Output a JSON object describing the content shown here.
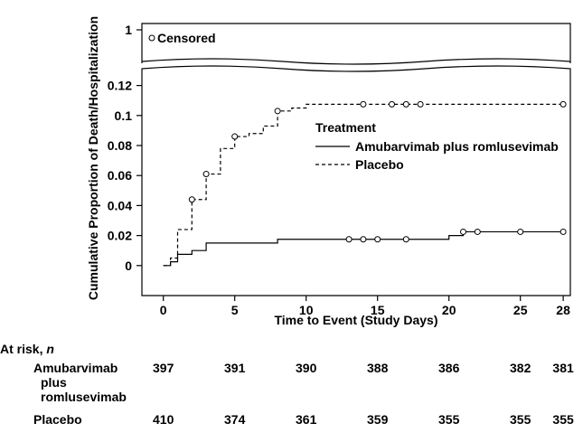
{
  "chart_data": {
    "type": "line",
    "step": true,
    "title": "",
    "xlabel": "Time to Event (Study Days)",
    "ylabel": "Cumulative Proportion of Death/Hospitalization",
    "xlim": [
      -1.5,
      28.5
    ],
    "ylim": [
      -0.02,
      0.13
    ],
    "xticks": [
      0,
      5,
      10,
      15,
      20,
      25,
      28
    ],
    "yticks": [
      0,
      0.02,
      0.04,
      0.06,
      0.08,
      0.1,
      0.12
    ],
    "ytick_labels": [
      "0",
      "0.02",
      "0.04",
      "0.06",
      "0.08",
      "0.1",
      "0.12"
    ],
    "top_panel": {
      "y_tick": "1",
      "censor_label": "Censored"
    },
    "legend": {
      "title": "Treatment",
      "position": "right, upper-middle"
    },
    "series": [
      {
        "name": "Amubarvimab plus romlusevimab",
        "line_style": "solid",
        "color": "#000000",
        "steps": [
          [
            0,
            0
          ],
          [
            0.5,
            0.0025
          ],
          [
            1,
            0.0075
          ],
          [
            2,
            0.01
          ],
          [
            3,
            0.015
          ],
          [
            8,
            0.0175
          ],
          [
            20,
            0.02
          ],
          [
            21,
            0.0225
          ],
          [
            28,
            0.0225
          ]
        ],
        "censored": [
          [
            13,
            0.0175
          ],
          [
            14,
            0.0175
          ],
          [
            15,
            0.0175
          ],
          [
            17,
            0.0175
          ],
          [
            21,
            0.0225
          ],
          [
            22,
            0.0225
          ],
          [
            25,
            0.0225
          ],
          [
            28,
            0.0225
          ]
        ]
      },
      {
        "name": "Placebo",
        "line_style": "dashed",
        "color": "#000000",
        "steps": [
          [
            0,
            0
          ],
          [
            0.5,
            0.005
          ],
          [
            1,
            0.024
          ],
          [
            2,
            0.044
          ],
          [
            3,
            0.061
          ],
          [
            4,
            0.078
          ],
          [
            5,
            0.086
          ],
          [
            6,
            0.088
          ],
          [
            7,
            0.093
          ],
          [
            8,
            0.103
          ],
          [
            9,
            0.105
          ],
          [
            10,
            0.1075
          ],
          [
            28,
            0.1075
          ]
        ],
        "censored": [
          [
            2,
            0.044
          ],
          [
            3,
            0.061
          ],
          [
            5,
            0.086
          ],
          [
            8,
            0.103
          ],
          [
            14,
            0.1075
          ],
          [
            16,
            0.1075
          ],
          [
            17,
            0.1075
          ],
          [
            18,
            0.1075
          ],
          [
            28,
            0.1075
          ]
        ]
      }
    ]
  },
  "risk_table": {
    "header": "At risk,",
    "header_n": "n",
    "days": [
      0,
      5,
      10,
      15,
      20,
      25,
      28
    ],
    "groups": [
      {
        "label_lines": [
          "Amubarvimab",
          "plus",
          "romlusevimab"
        ],
        "values": [
          "397",
          "391",
          "390",
          "388",
          "386",
          "382",
          "381"
        ]
      },
      {
        "label_lines": [
          "Placebo"
        ],
        "values": [
          "410",
          "374",
          "361",
          "359",
          "355",
          "355",
          "355"
        ]
      }
    ]
  }
}
